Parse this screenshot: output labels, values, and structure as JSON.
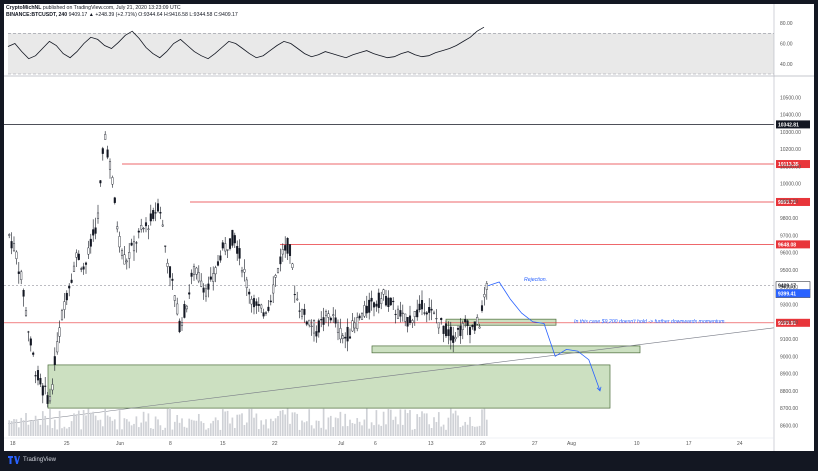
{
  "header": {
    "publisher": "CryptoMichNL",
    "published_line": "published on TradingView.com, July 21, 2020 13:23:09 UTC",
    "symbol_line": "BINANCE:BTCUSDT, 240",
    "quote": "9409.17 ▲ +248.39 (+2.71%) O:9344.64 H:9416.58 L:9344.58 C:9409.17"
  },
  "footer": {
    "brand": "TradingView",
    "brand_icon": "tradingview-logo-icon"
  },
  "colors": {
    "background": "#ffffff",
    "candle": "#131722",
    "level_line": "#e8353a",
    "zone_fill": "#b7d3a6",
    "zone_stroke": "#4b6b3a",
    "projection": "#2962ff",
    "annotation": "#2962ff",
    "rsi_band": "#e9e9e9"
  },
  "chart_data": [
    {
      "type": "candlestick",
      "title": "BINANCE:BTCUSDT, 240",
      "y_axis": {
        "ticks": [
          8600,
          8700,
          8800,
          8900,
          9000,
          9100,
          9200,
          9300,
          9400,
          9500,
          9600,
          9700,
          9800,
          9900,
          10000,
          10100,
          10200,
          10300,
          10400,
          10500
        ],
        "tick_labels": [
          "8600.00",
          "8700.00",
          "8800.00",
          "8900.00",
          "9000.00",
          "9100.00",
          "9200.00",
          "9300.00",
          "9400.00",
          "9500.00",
          "9600.00",
          "9700.00",
          "9800.00",
          "9900.00",
          "10000.00",
          "10100.00",
          "10200.00",
          "10300.00",
          "10400.00",
          "10500.00"
        ],
        "range": [
          8550,
          10600
        ]
      },
      "x_axis": {
        "tick_labels": [
          "18",
          "25",
          "Jun",
          "8",
          "15",
          "22",
          "Jul",
          "6",
          "13",
          "20",
          "27",
          "Aug",
          "10",
          "17",
          "24"
        ]
      },
      "price_path": [
        9700,
        9600,
        9400,
        9100,
        8900,
        8800,
        8750,
        9050,
        9300,
        9450,
        9600,
        9500,
        9650,
        9800,
        10300,
        10050,
        9700,
        9550,
        9620,
        9700,
        9750,
        9800,
        9900,
        9600,
        9400,
        9180,
        9300,
        9500,
        9450,
        9380,
        9450,
        9600,
        9650,
        9700,
        9550,
        9400,
        9300,
        9250,
        9300,
        9450,
        9600,
        9650,
        9350,
        9250,
        9200,
        9150,
        9200,
        9250,
        9180,
        9100,
        9150,
        9200,
        9250,
        9300,
        9320,
        9350,
        9300,
        9250,
        9200,
        9230,
        9260,
        9300,
        9240,
        9200,
        9150,
        9120,
        9150,
        9180,
        9160,
        9200,
        9409
      ],
      "levels": [
        {
          "price": 10342.81,
          "label": "10342.81",
          "style": "black"
        },
        {
          "price": 10113.35,
          "label": "10113.35",
          "style": "red"
        },
        {
          "price": 9893.71,
          "label": "9893.71",
          "style": "red"
        },
        {
          "price": 9648.08,
          "label": "9648.08",
          "style": "red"
        },
        {
          "price": 9193.91,
          "label": "9193.91",
          "style": "red"
        }
      ],
      "last_price": {
        "price": 9409.17,
        "label": "9409.17",
        "countdown": "02:36:52"
      },
      "crosshair": {
        "price": 9399.41,
        "label": "9399.41"
      },
      "zones": [
        {
          "price_from": 8700,
          "price_to": 8950,
          "label": ""
        },
        {
          "price_from": 9020,
          "price_to": 9060,
          "label": ""
        },
        {
          "price_from": 9180,
          "price_to": 9215,
          "label": ""
        }
      ],
      "projection_path": [
        9409,
        9430,
        9330,
        9250,
        9200,
        9190,
        9000,
        9040,
        9030,
        8980,
        8800
      ],
      "annotations": [
        {
          "text": "Rejection.",
          "price": 9435
        },
        {
          "text": "In this case $9,200 doesn't hold -> further downwards momentum.",
          "price": 9205
        }
      ]
    },
    {
      "type": "line",
      "name": "RSI",
      "y_axis": {
        "ticks": [
          40,
          60,
          80
        ],
        "tick_labels": [
          "40.00",
          "60.00",
          "80.00"
        ],
        "range": [
          30,
          85
        ]
      },
      "band": [
        30,
        70
      ],
      "values": [
        57,
        60,
        52,
        45,
        48,
        55,
        62,
        58,
        50,
        46,
        52,
        60,
        66,
        64,
        58,
        55,
        61,
        68,
        72,
        65,
        56,
        50,
        46,
        52,
        60,
        64,
        58,
        52,
        48,
        45,
        50,
        56,
        62,
        60,
        55,
        50,
        46,
        48,
        53,
        58,
        62,
        60,
        55,
        50,
        47,
        49,
        52,
        50,
        48,
        46,
        49,
        51,
        53,
        50,
        48,
        46,
        47,
        50,
        52,
        49,
        47,
        48,
        51,
        53,
        55,
        58,
        62,
        66,
        72,
        76
      ]
    }
  ]
}
